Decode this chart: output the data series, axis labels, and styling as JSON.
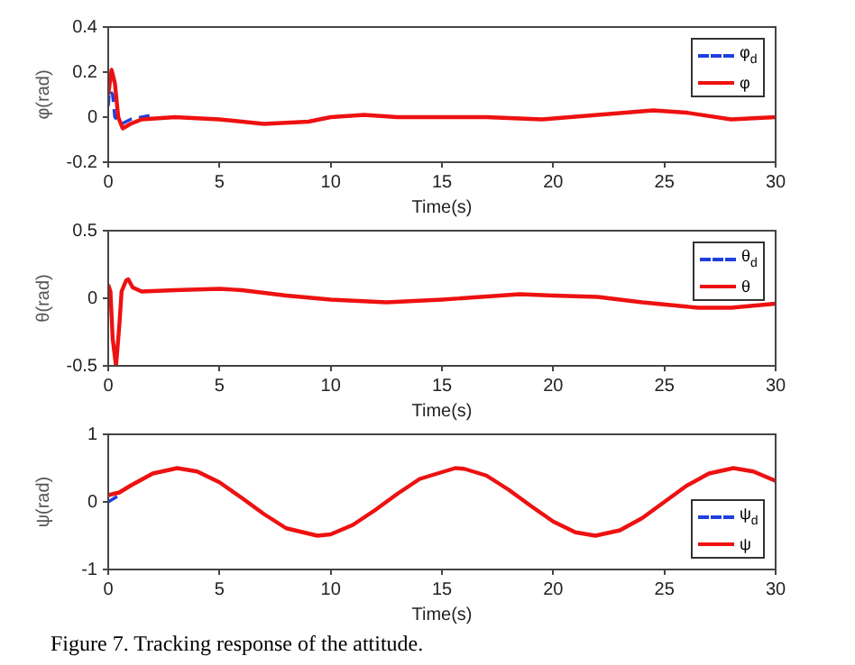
{
  "chart_data": [
    {
      "type": "line",
      "xlabel": "Time(s)",
      "ylabel": "φ(rad)",
      "xlim": [
        0,
        30
      ],
      "xticks": [
        0,
        5,
        10,
        15,
        20,
        25,
        30
      ],
      "ylim": [
        -0.2,
        0.4
      ],
      "yticks": [
        -0.2,
        0,
        0.2,
        0.4
      ],
      "grid": false,
      "legend": "top right",
      "series": [
        {
          "name": "φ$_{d}$",
          "color": "#1f3fe0",
          "line_style": "dashed",
          "x": [
            0,
            0.05,
            0.2,
            0.3,
            0.6,
            1,
            1.5,
            2
          ],
          "values": [
            0.05,
            0.12,
            0.1,
            0,
            -0.03,
            -0.01,
            0,
            0.01
          ]
        },
        {
          "name": "φ",
          "color": "#ee1111",
          "line_style": "solid",
          "x": [
            0,
            0.15,
            0.3,
            0.45,
            0.65,
            1,
            1.5,
            3,
            5,
            7,
            9,
            10,
            11.5,
            13,
            15,
            17,
            19.5,
            22,
            24.5,
            26,
            28,
            30
          ],
          "values": [
            0.1,
            0.21,
            0.15,
            0,
            -0.05,
            -0.03,
            -0.01,
            0,
            -0.01,
            -0.03,
            -0.02,
            0,
            0.01,
            0,
            0,
            0,
            -0.01,
            0.01,
            0.03,
            0.02,
            -0.01,
            0
          ]
        }
      ]
    },
    {
      "type": "line",
      "xlabel": "Time(s)",
      "ylabel": "θ(rad)",
      "xlim": [
        0,
        30
      ],
      "xticks": [
        0,
        5,
        10,
        15,
        20,
        25,
        30
      ],
      "ylim": [
        -0.5,
        0.5
      ],
      "yticks": [
        -0.5,
        0,
        0.5
      ],
      "grid": false,
      "legend": "top right",
      "series": [
        {
          "name": "θ$_{d}$",
          "color": "#1f3fe0",
          "line_style": "dashed"
        },
        {
          "name": "θ",
          "color": "#ee1111",
          "line_style": "solid",
          "x": [
            0,
            0.1,
            0.2,
            0.35,
            0.5,
            0.6,
            0.8,
            0.9,
            1.1,
            1.5,
            3,
            5,
            6,
            8,
            10,
            12.5,
            15,
            18.5,
            20,
            22,
            24,
            26.5,
            28,
            30
          ],
          "values": [
            0.1,
            0.05,
            -0.3,
            -0.5,
            -0.2,
            0.05,
            0.13,
            0.14,
            0.08,
            0.05,
            0.06,
            0.07,
            0.06,
            0.02,
            -0.01,
            -0.03,
            -0.01,
            0.03,
            0.02,
            0.01,
            -0.03,
            -0.07,
            -0.07,
            -0.04
          ]
        }
      ]
    },
    {
      "type": "line",
      "xlabel": "Time(s)",
      "ylabel": "ψ(rad)",
      "xlim": [
        0,
        30
      ],
      "xticks": [
        0,
        5,
        10,
        15,
        20,
        25,
        30
      ],
      "ylim": [
        -1,
        1
      ],
      "yticks": [
        -1,
        0,
        1
      ],
      "grid": false,
      "legend": "bottom right",
      "annotations": [
        "Figure 7. Tracking response of the attitude."
      ],
      "series": [
        {
          "name": "ψ$_{d}$",
          "color": "#1f3fe0",
          "line_style": "dashed",
          "x": [
            0,
            0.4
          ],
          "values": [
            0,
            0.08
          ]
        },
        {
          "name": "ψ",
          "color": "#ee1111",
          "line_style": "solid",
          "x": [
            0,
            0.5,
            1,
            2,
            3.1,
            4,
            5,
            6,
            7,
            8,
            9.4,
            10,
            11,
            12,
            13,
            14,
            15.6,
            16,
            17,
            18,
            19,
            20,
            21,
            21.9,
            23,
            24,
            25,
            26,
            27,
            28.1,
            29,
            30
          ],
          "values": [
            0.1,
            0.14,
            0.24,
            0.42,
            0.5,
            0.45,
            0.29,
            0.06,
            -0.18,
            -0.39,
            -0.5,
            -0.48,
            -0.34,
            -0.12,
            0.12,
            0.34,
            0.5,
            0.49,
            0.39,
            0.18,
            -0.06,
            -0.29,
            -0.45,
            -0.5,
            -0.42,
            -0.24,
            0,
            0.24,
            0.42,
            0.5,
            0.45,
            0.31
          ]
        }
      ]
    }
  ]
}
